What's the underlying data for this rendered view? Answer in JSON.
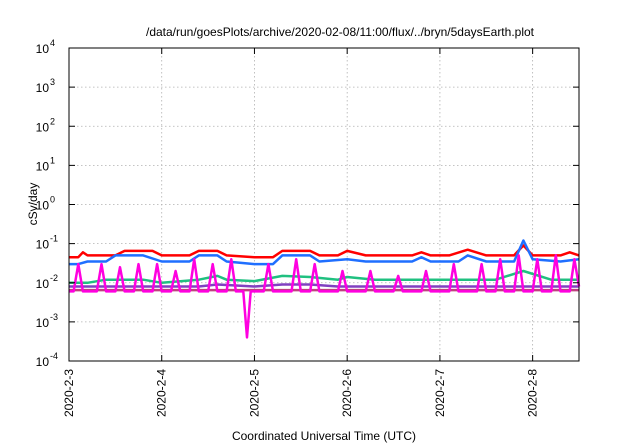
{
  "chart_data": {
    "type": "line",
    "title": "/data/run/goesPlots/archive/2020-02-08/11:00/flux/../bryn/5daysEarth.plot",
    "xlabel": "Coordinated Universal Time (UTC)",
    "ylabel": "cSv/day",
    "yscale": "log",
    "ylim": [
      0.0001,
      10000
    ],
    "xlim": [
      0,
      5.5
    ],
    "grid": true,
    "legend": "none",
    "x_tick_labels": [
      "2020-2-3",
      "2020-2-4",
      "2020-2-5",
      "2020-2-6",
      "2020-2-7",
      "2020-2-8"
    ],
    "x_tick_positions": [
      0,
      1,
      2,
      3,
      4,
      5
    ],
    "y_tick_labels": [
      {
        "base": "10",
        "exp": "-4",
        "value": 0.0001
      },
      {
        "base": "10",
        "exp": "-3",
        "value": 0.001
      },
      {
        "base": "10",
        "exp": "-2",
        "value": 0.01
      },
      {
        "base": "10",
        "exp": "-1",
        "value": 0.1
      },
      {
        "base": "10",
        "exp": "0",
        "value": 1
      },
      {
        "base": "10",
        "exp": "1",
        "value": 10
      },
      {
        "base": "10",
        "exp": "2",
        "value": 100
      },
      {
        "base": "10",
        "exp": "3",
        "value": 1000
      },
      {
        "base": "10",
        "exp": "4",
        "value": 10000
      }
    ],
    "series": [
      {
        "color": "#ff0000",
        "points": [
          [
            0,
            0.045
          ],
          [
            0.1,
            0.045
          ],
          [
            0.15,
            0.06
          ],
          [
            0.2,
            0.05
          ],
          [
            0.3,
            0.05
          ],
          [
            0.5,
            0.05
          ],
          [
            0.6,
            0.065
          ],
          [
            0.9,
            0.065
          ],
          [
            1.0,
            0.05
          ],
          [
            1.3,
            0.05
          ],
          [
            1.4,
            0.065
          ],
          [
            1.6,
            0.065
          ],
          [
            1.7,
            0.05
          ],
          [
            2.0,
            0.045
          ],
          [
            2.2,
            0.045
          ],
          [
            2.3,
            0.065
          ],
          [
            2.6,
            0.065
          ],
          [
            2.7,
            0.05
          ],
          [
            2.9,
            0.05
          ],
          [
            3.0,
            0.065
          ],
          [
            3.2,
            0.05
          ],
          [
            3.5,
            0.05
          ],
          [
            3.7,
            0.05
          ],
          [
            3.8,
            0.06
          ],
          [
            3.9,
            0.05
          ],
          [
            4.1,
            0.05
          ],
          [
            4.3,
            0.07
          ],
          [
            4.5,
            0.05
          ],
          [
            4.8,
            0.05
          ],
          [
            4.9,
            0.09
          ],
          [
            5.0,
            0.05
          ],
          [
            5.3,
            0.05
          ],
          [
            5.4,
            0.06
          ],
          [
            5.5,
            0.05
          ]
        ]
      },
      {
        "color": "#1f6fff",
        "points": [
          [
            0,
            0.03
          ],
          [
            0.1,
            0.03
          ],
          [
            0.2,
            0.035
          ],
          [
            0.4,
            0.035
          ],
          [
            0.5,
            0.05
          ],
          [
            0.8,
            0.05
          ],
          [
            1.0,
            0.035
          ],
          [
            1.3,
            0.035
          ],
          [
            1.4,
            0.05
          ],
          [
            1.6,
            0.05
          ],
          [
            1.7,
            0.035
          ],
          [
            2.0,
            0.03
          ],
          [
            2.2,
            0.03
          ],
          [
            2.3,
            0.05
          ],
          [
            2.6,
            0.05
          ],
          [
            2.7,
            0.035
          ],
          [
            3.0,
            0.04
          ],
          [
            3.2,
            0.035
          ],
          [
            3.5,
            0.035
          ],
          [
            3.7,
            0.035
          ],
          [
            3.8,
            0.045
          ],
          [
            3.9,
            0.035
          ],
          [
            4.2,
            0.035
          ],
          [
            4.3,
            0.05
          ],
          [
            4.5,
            0.035
          ],
          [
            4.8,
            0.035
          ],
          [
            4.9,
            0.12
          ],
          [
            5.0,
            0.04
          ],
          [
            5.3,
            0.035
          ],
          [
            5.5,
            0.04
          ]
        ]
      },
      {
        "color": "#20c080",
        "points": [
          [
            0,
            0.01
          ],
          [
            0.2,
            0.01
          ],
          [
            0.4,
            0.012
          ],
          [
            0.8,
            0.012
          ],
          [
            1.0,
            0.01
          ],
          [
            1.4,
            0.012
          ],
          [
            1.6,
            0.015
          ],
          [
            1.7,
            0.012
          ],
          [
            2.0,
            0.011
          ],
          [
            2.3,
            0.015
          ],
          [
            2.6,
            0.014
          ],
          [
            2.9,
            0.012
          ],
          [
            3.0,
            0.014
          ],
          [
            3.3,
            0.012
          ],
          [
            3.6,
            0.012
          ],
          [
            4.0,
            0.012
          ],
          [
            4.3,
            0.012
          ],
          [
            4.6,
            0.012
          ],
          [
            4.9,
            0.02
          ],
          [
            5.2,
            0.012
          ],
          [
            5.5,
            0.012
          ]
        ]
      },
      {
        "color": "#8040c0",
        "points": [
          [
            0,
            0.008
          ],
          [
            0.2,
            0.008
          ],
          [
            0.4,
            0.008
          ],
          [
            0.8,
            0.008
          ],
          [
            1.0,
            0.008
          ],
          [
            1.4,
            0.008
          ],
          [
            1.6,
            0.009
          ],
          [
            2.0,
            0.008
          ],
          [
            2.3,
            0.009
          ],
          [
            2.6,
            0.009
          ],
          [
            2.9,
            0.008
          ],
          [
            3.3,
            0.008
          ],
          [
            3.6,
            0.008
          ],
          [
            4.0,
            0.008
          ],
          [
            4.3,
            0.008
          ],
          [
            4.6,
            0.008
          ],
          [
            5.0,
            0.008
          ],
          [
            5.5,
            0.008
          ]
        ]
      },
      {
        "color": "#c04080",
        "points": [
          [
            0,
            0.0065
          ],
          [
            0.5,
            0.0065
          ],
          [
            1.0,
            0.0065
          ],
          [
            1.5,
            0.0065
          ],
          [
            2.0,
            0.0065
          ],
          [
            2.5,
            0.0065
          ],
          [
            3.0,
            0.0065
          ],
          [
            3.5,
            0.0065
          ],
          [
            4.0,
            0.0065
          ],
          [
            4.5,
            0.0065
          ],
          [
            5.0,
            0.0065
          ],
          [
            5.5,
            0.0065
          ]
        ]
      },
      {
        "color": "#ff00e0",
        "points": [
          [
            0,
            0.006
          ],
          [
            0.05,
            0.006
          ],
          [
            0.1,
            0.03
          ],
          [
            0.15,
            0.006
          ],
          [
            0.3,
            0.006
          ],
          [
            0.35,
            0.03
          ],
          [
            0.4,
            0.006
          ],
          [
            0.5,
            0.006
          ],
          [
            0.55,
            0.025
          ],
          [
            0.6,
            0.006
          ],
          [
            0.7,
            0.006
          ],
          [
            0.75,
            0.03
          ],
          [
            0.8,
            0.006
          ],
          [
            0.9,
            0.006
          ],
          [
            0.95,
            0.03
          ],
          [
            1.0,
            0.006
          ],
          [
            1.1,
            0.006
          ],
          [
            1.15,
            0.02
          ],
          [
            1.2,
            0.006
          ],
          [
            1.3,
            0.006
          ],
          [
            1.35,
            0.04
          ],
          [
            1.4,
            0.006
          ],
          [
            1.5,
            0.006
          ],
          [
            1.55,
            0.03
          ],
          [
            1.6,
            0.006
          ],
          [
            1.7,
            0.006
          ],
          [
            1.75,
            0.04
          ],
          [
            1.8,
            0.006
          ],
          [
            1.88,
            0.006
          ],
          [
            1.92,
            0.0004
          ],
          [
            1.96,
            0.006
          ],
          [
            2.1,
            0.006
          ],
          [
            2.15,
            0.03
          ],
          [
            2.2,
            0.006
          ],
          [
            2.4,
            0.006
          ],
          [
            2.45,
            0.04
          ],
          [
            2.5,
            0.006
          ],
          [
            2.6,
            0.006
          ],
          [
            2.65,
            0.03
          ],
          [
            2.7,
            0.006
          ],
          [
            2.9,
            0.006
          ],
          [
            2.95,
            0.02
          ],
          [
            3.0,
            0.006
          ],
          [
            3.2,
            0.006
          ],
          [
            3.25,
            0.02
          ],
          [
            3.3,
            0.006
          ],
          [
            3.5,
            0.006
          ],
          [
            3.55,
            0.015
          ],
          [
            3.6,
            0.006
          ],
          [
            3.8,
            0.006
          ],
          [
            3.85,
            0.02
          ],
          [
            3.9,
            0.006
          ],
          [
            4.1,
            0.006
          ],
          [
            4.15,
            0.03
          ],
          [
            4.2,
            0.006
          ],
          [
            4.4,
            0.006
          ],
          [
            4.45,
            0.03
          ],
          [
            4.5,
            0.006
          ],
          [
            4.6,
            0.006
          ],
          [
            4.65,
            0.04
          ],
          [
            4.7,
            0.006
          ],
          [
            4.8,
            0.006
          ],
          [
            4.85,
            0.05
          ],
          [
            4.9,
            0.006
          ],
          [
            5.0,
            0.006
          ],
          [
            5.05,
            0.04
          ],
          [
            5.1,
            0.006
          ],
          [
            5.2,
            0.006
          ],
          [
            5.25,
            0.05
          ],
          [
            5.3,
            0.006
          ],
          [
            5.4,
            0.006
          ],
          [
            5.45,
            0.04
          ],
          [
            5.5,
            0.008
          ]
        ]
      }
    ]
  }
}
